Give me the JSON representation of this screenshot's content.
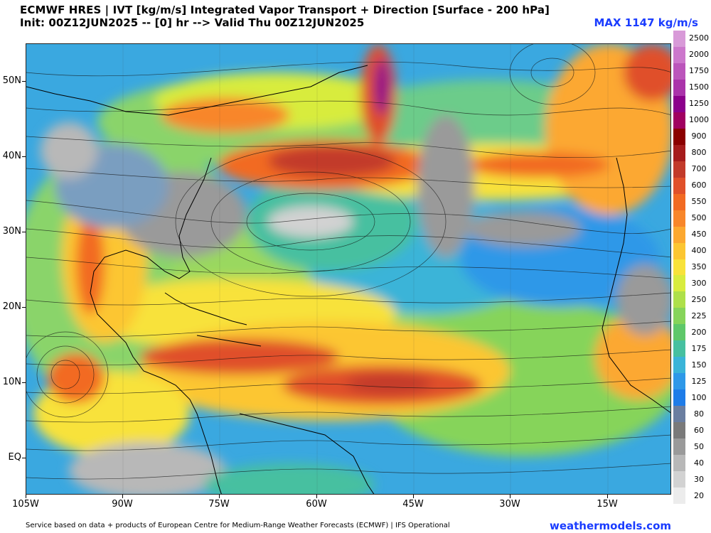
{
  "header": {
    "title_line1": "ECMWF HRES | IVT [kg/m/s] Integrated Vapor Transport + Direction [Surface - 200 hPa]",
    "title_line2": "Init: 00Z12JUN2025 -- [0] hr --> Valid Thu 00Z12JUN2025",
    "max_label": "MAX 1147 kg/m/s"
  },
  "axes": {
    "lat_labels": [
      "50N",
      "40N",
      "30N",
      "20N",
      "10N",
      "EQ"
    ],
    "lon_labels": [
      "105W",
      "90W",
      "75W",
      "60W",
      "45W",
      "30W",
      "15W"
    ]
  },
  "colorbar": {
    "levels": [
      "2500",
      "2000",
      "1750",
      "1500",
      "1250",
      "1000",
      "900",
      "800",
      "700",
      "600",
      "550",
      "500",
      "450",
      "400",
      "350",
      "300",
      "250",
      "225",
      "200",
      "175",
      "150",
      "125",
      "100",
      "80",
      "60",
      "50",
      "40",
      "30",
      "20"
    ],
    "colors": [
      "#d89ad8",
      "#cc77cc",
      "#bb55bb",
      "#aa33aa",
      "#8b008b",
      "#a00060",
      "#8b0000",
      "#a61c1c",
      "#c23a2a",
      "#e0502a",
      "#f26a22",
      "#f8862a",
      "#fca830",
      "#fcc632",
      "#f8e23a",
      "#d8ec3e",
      "#aee04a",
      "#86d45a",
      "#5ec86a",
      "#46c0a0",
      "#3ab4d8",
      "#2e98e8",
      "#1e7ce8",
      "#6a7ea0",
      "#7a7a7a",
      "#9a9a9a",
      "#b8b8b8",
      "#d2d2d2",
      "#ececec"
    ]
  },
  "footer": {
    "credit": "Service based on data + products of European Centre for Medium-Range Weather Forecasts (ECMWF) | IFS Operational",
    "brand": "weathermodels.com"
  }
}
